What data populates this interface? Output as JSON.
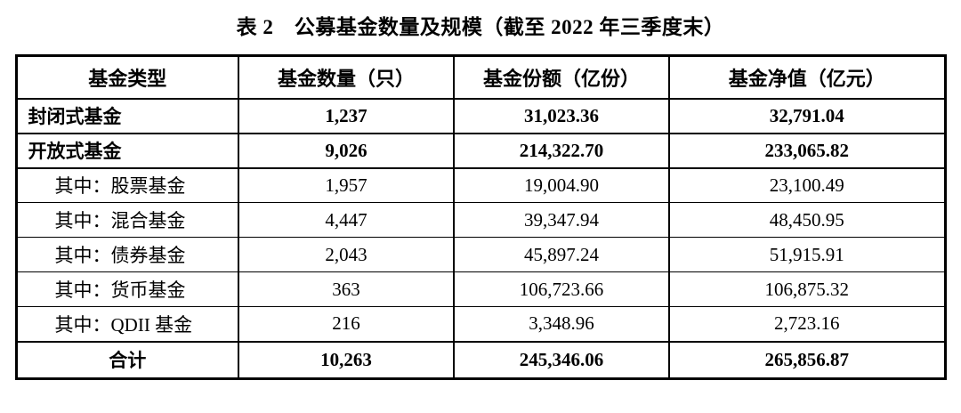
{
  "title": "表 2　公募基金数量及规模（截至 2022 年三季度末）",
  "table": {
    "columns": [
      "基金类型",
      "基金数量（只）",
      "基金份额（亿份）",
      "基金净值（亿元）"
    ],
    "rows": [
      {
        "label": "封闭式基金",
        "values": [
          "1,237",
          "31,023.36",
          "32,791.04"
        ],
        "style": "major"
      },
      {
        "label": "开放式基金",
        "values": [
          "9,026",
          "214,322.70",
          "233,065.82"
        ],
        "style": "major"
      },
      {
        "label": "其中：股票基金",
        "values": [
          "1,957",
          "19,004.90",
          "23,100.49"
        ],
        "style": "sub"
      },
      {
        "label": "其中：混合基金",
        "values": [
          "4,447",
          "39,347.94",
          "48,450.95"
        ],
        "style": "sub"
      },
      {
        "label": "其中：债券基金",
        "values": [
          "2,043",
          "45,897.24",
          "51,915.91"
        ],
        "style": "sub"
      },
      {
        "label": "其中：货币基金",
        "values": [
          "363",
          "106,723.66",
          "106,875.32"
        ],
        "style": "sub"
      },
      {
        "label": "其中：QDII 基金",
        "values": [
          "216",
          "3,348.96",
          "2,723.16"
        ],
        "style": "sub"
      },
      {
        "label": "合计",
        "values": [
          "10,263",
          "245,346.06",
          "265,856.87"
        ],
        "style": "total"
      }
    ]
  }
}
